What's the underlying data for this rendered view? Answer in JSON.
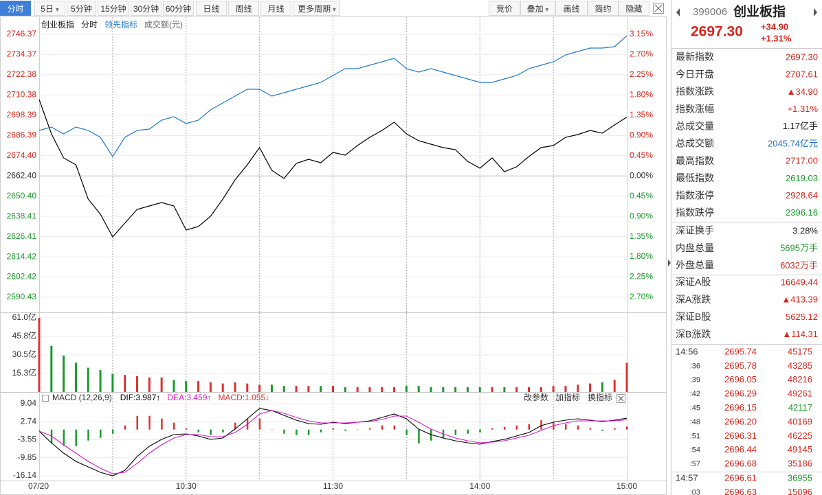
{
  "toolbar": {
    "left": [
      {
        "label": "分时"
      },
      {
        "label": "5日",
        "menu": true
      },
      {
        "label": "5分钟"
      },
      {
        "label": "15分钟"
      },
      {
        "label": "30分钟"
      },
      {
        "label": "60分钟"
      },
      {
        "label": "日线"
      },
      {
        "label": "周线"
      },
      {
        "label": "月线"
      },
      {
        "label": "更多周期",
        "menu": true
      }
    ],
    "right": [
      {
        "label": "竞价"
      },
      {
        "label": "叠加",
        "menu": true
      },
      {
        "label": "画线"
      },
      {
        "label": "简约"
      },
      {
        "label": "隐藏"
      }
    ]
  },
  "chart_data": [
    {
      "type": "line",
      "mode": "分时",
      "categories": [
        "07/20",
        null,
        null,
        null,
        null,
        null,
        null,
        null,
        null,
        null,
        null,
        null,
        "10:30",
        null,
        null,
        null,
        null,
        null,
        null,
        null,
        null,
        null,
        null,
        null,
        "11:30",
        null,
        null,
        null,
        null,
        null,
        null,
        null,
        null,
        null,
        null,
        null,
        "14:00",
        null,
        null,
        null,
        null,
        null,
        null,
        null,
        null,
        null,
        null,
        null,
        "15:00"
      ],
      "series": [
        {
          "name": "创业板指",
          "color": "#000000",
          "values": [
            2707.69,
            2687.33,
            2673.08,
            2669.01,
            2648.65,
            2639.69,
            2626.26,
            2634.4,
            2642.54,
            2644.58,
            2646.62,
            2644.58,
            2630.33,
            2632.37,
            2638.47,
            2648.65,
            2660.05,
            2669.01,
            2679.19,
            2665.75,
            2660.87,
            2669.82,
            2672.27,
            2670.23,
            2676.34,
            2674.71,
            2680.41,
            2685.3,
            2689.37,
            2694.25,
            2687.33,
            2683.26,
            2681.22,
            2679.19,
            2677.97,
            2671.05,
            2666.97,
            2673.08,
            2664.94,
            2667.79,
            2673.9,
            2679.19,
            2680.41,
            2685.3,
            2686.92,
            2689.37,
            2687.74,
            2692.62,
            2697.3
          ]
        },
        {
          "name": "领先指标",
          "color": "#1f7ad1",
          "values": [
            2689.37,
            2691.4,
            2687.33,
            2691.4,
            2689.37,
            2685.3,
            2673.9,
            2685.3,
            2689.37,
            2690.18,
            2695.47,
            2697.51,
            2693.44,
            2695.47,
            2701.58,
            2705.65,
            2709.73,
            2713.8,
            2713.8,
            2709.73,
            2711.76,
            2713.8,
            2715.83,
            2717.87,
            2721.94,
            2726.01,
            2726.01,
            2728.05,
            2730.08,
            2732.12,
            2726.01,
            2723.98,
            2726.01,
            2723.98,
            2721.94,
            2719.9,
            2717.87,
            2717.87,
            2719.9,
            2721.94,
            2726.01,
            2728.05,
            2730.08,
            2734.16,
            2736.19,
            2738.23,
            2738.23,
            2739.04,
            2745.56
          ]
        }
      ],
      "ylim": [
        2590.43,
        2746.37
      ],
      "yticks": [
        2746.37,
        2734.37,
        2722.38,
        2710.38,
        2698.39,
        2686.39,
        {
          "value": 2674.4,
          "label": "2674.40"
        },
        {
          "value": 2662.4,
          "label": "2662.40"
        },
        {
          "value": 2650.4,
          "label": "2650.40"
        },
        2638.41,
        2626.41,
        2614.42,
        2602.42,
        2590.43
      ],
      "y2lim": [
        -2.7,
        3.15
      ],
      "y2ticks": [
        {
          "value": 3.15,
          "label": "3.15%"
        },
        {
          "value": 2.7,
          "label": "2.70%"
        },
        {
          "value": 2.25,
          "label": "2.25%"
        },
        {
          "value": 1.8,
          "label": "1.80%"
        },
        {
          "value": 1.35,
          "label": "1.35%"
        },
        {
          "value": 0.9,
          "label": "0.90%"
        },
        {
          "value": 0.45,
          "label": "0.45%"
        },
        {
          "value": 0,
          "label": "0.00%"
        },
        {
          "value": -0.45,
          "label": "0.45%"
        },
        {
          "value": -0.9,
          "label": "0.90%"
        },
        {
          "value": -1.35,
          "label": "1.35%"
        },
        {
          "value": -1.8,
          "label": "1.80%"
        },
        {
          "value": -2.25,
          "label": "2.25%"
        },
        {
          "value": -2.7,
          "label": "2.70%"
        }
      ],
      "grid": true
    },
    {
      "type": "bar",
      "title": "成交额(元)",
      "up_color": "#e0302f",
      "down_color": "#1a9a2a",
      "values": [
        61,
        38,
        30,
        24,
        20,
        18,
        15,
        14,
        13,
        12,
        12,
        10,
        9,
        9,
        8,
        7,
        8,
        7,
        6,
        6,
        5,
        5,
        5,
        5,
        5,
        4,
        4,
        4,
        4,
        4,
        5,
        5,
        4,
        4,
        4,
        4,
        4,
        4,
        4,
        4,
        4,
        4,
        5,
        5,
        6,
        7,
        8,
        10,
        24
      ],
      "ylim": [
        0,
        61
      ],
      "yticks": [
        {
          "value": 61,
          "label": "61.0亿"
        },
        {
          "value": 45.8,
          "label": "45.8亿"
        },
        {
          "value": 30.5,
          "label": "30.5亿"
        },
        {
          "value": 15.3,
          "label": "15.3亿"
        }
      ],
      "grid": true
    },
    {
      "type": "macd",
      "title": "MACD (12,26,9)",
      "readouts": [
        {
          "text": "DIF:3.987↑",
          "color": "#000000"
        },
        {
          "text": "DEA:3.459↑",
          "color": "#d81cc8"
        },
        {
          "text": "MACD:1.055↓",
          "color": "#e0302f"
        }
      ],
      "tools": [
        "改参数",
        "加指标",
        "换指标"
      ],
      "series": [
        {
          "name": "DIF",
          "color": "#000000",
          "values": [
            -0.55,
            -4.63,
            -8.23,
            -11.1,
            -13.02,
            -14.94,
            -16.14,
            -14.22,
            -9.43,
            -5.83,
            -3.43,
            -1.75,
            -1.51,
            -2.23,
            -3.43,
            -2.95,
            0.17,
            3.76,
            7.36,
            6.64,
            4.96,
            3.28,
            2.09,
            1.85,
            2.57,
            2.09,
            2.57,
            3.04,
            4.24,
            5.44,
            3.76,
            0.17,
            -1.75,
            -2.95,
            -3.91,
            -4.63,
            -5.11,
            -4.15,
            -3.43,
            -2.23,
            -1.03,
            1.37,
            2.57,
            3.28,
            3.76,
            3.28,
            2.8,
            3.28,
            3.99
          ]
        },
        {
          "name": "DEA",
          "color": "#d81cc8",
          "values": [
            -0.55,
            -2.23,
            -5.35,
            -8.23,
            -11.1,
            -13.5,
            -15.42,
            -14.94,
            -11.82,
            -8.23,
            -5.35,
            -2.95,
            -1.75,
            -1.75,
            -2.47,
            -2.47,
            -1.03,
            1.85,
            5.44,
            6.64,
            5.68,
            4.24,
            3.04,
            2.33,
            2.33,
            2.33,
            2.57,
            2.8,
            3.52,
            4.72,
            4.72,
            2.57,
            0.17,
            -1.51,
            -2.95,
            -3.91,
            -4.63,
            -4.39,
            -3.91,
            -2.95,
            -1.99,
            -0.31,
            1.37,
            2.33,
            3.04,
            3.04,
            3.04,
            3.04,
            3.46
          ]
        },
        {
          "name": "MACD",
          "up_color": "#e0302f",
          "down_color": "#1a9a2a",
          "values": [
            0,
            -4.8,
            -5.76,
            -5.74,
            -3.84,
            -2.88,
            -1.44,
            1.44,
            4.78,
            4.8,
            3.84,
            2.4,
            0.48,
            -0.96,
            -1.92,
            -0.96,
            2.4,
            3.82,
            3.84,
            0,
            -1.44,
            -1.92,
            -1.9,
            -0.96,
            0.48,
            -0.48,
            0,
            0.48,
            1.44,
            1.44,
            -1.92,
            -4.8,
            -3.84,
            -2.88,
            -1.92,
            -1.44,
            -0.96,
            0.48,
            0.96,
            1.44,
            1.92,
            3.36,
            2.4,
            1.9,
            1.44,
            0.48,
            -0.48,
            0.48,
            1.055
          ]
        }
      ],
      "ylim": [
        -16.14,
        9.04
      ],
      "yticks": [
        9.04,
        2.74,
        -3.55,
        -9.85,
        -16.14
      ],
      "grid": true
    }
  ],
  "quote": {
    "code": "399006",
    "name": "创业板指",
    "price": "2697.30",
    "change": "+34.90",
    "change_pct": "+1.31%"
  },
  "stats": [
    [
      {
        "label": "最新指数",
        "value": "2697.30",
        "color": "#d9261c"
      },
      {
        "label": "今日开盘",
        "value": "2707.61",
        "color": "#d9261c"
      },
      {
        "label": "指数涨跌",
        "value": "▲34.90",
        "color": "#d9261c"
      },
      {
        "label": "指数涨幅",
        "value": "+1.31%",
        "color": "#d9261c"
      },
      {
        "label": "总成交量",
        "value": "1.17亿手",
        "color": "#222222"
      },
      {
        "label": "总成交额",
        "value": "2045.74亿元",
        "color": "#1f6fc0"
      },
      {
        "label": "最高指数",
        "value": "2717.00",
        "color": "#d9261c"
      },
      {
        "label": "最低指数",
        "value": "2619.03",
        "color": "#1a9a2a"
      },
      {
        "label": "指数涨停",
        "value": "2928.64",
        "color": "#d9261c"
      },
      {
        "label": "指数跌停",
        "value": "2396.16",
        "color": "#1a9a2a"
      }
    ],
    [
      {
        "label": "深证换手",
        "value": "3.28%",
        "color": "#222222"
      },
      {
        "label": "内盘总量",
        "value": "5695万手",
        "color": "#1a9a2a"
      },
      {
        "label": "外盘总量",
        "value": "6032万手",
        "color": "#d9261c"
      }
    ],
    [
      {
        "label": "深证A股",
        "value": "16649.44",
        "color": "#d9261c"
      },
      {
        "label": "深A涨跌",
        "value": "▲413.39",
        "color": "#d9261c"
      },
      {
        "label": "深证B股",
        "value": "5625.12",
        "color": "#d9261c"
      },
      {
        "label": "深B涨跌",
        "value": "▲114.31",
        "color": "#d9261c"
      }
    ]
  ],
  "trades": [
    [
      {
        "time": "14:56",
        "price": "2695.74",
        "volume": "45175",
        "color": "#d9261c"
      },
      {
        "time": ":36",
        "price": "2695.78",
        "volume": "43285",
        "color": "#d9261c"
      },
      {
        "time": ":39",
        "price": "2696.05",
        "volume": "48216",
        "color": "#d9261c"
      },
      {
        "time": ":42",
        "price": "2696.29",
        "volume": "49261",
        "color": "#d9261c"
      },
      {
        "time": ":45",
        "price": "2696.15",
        "volume": "42117",
        "color": "#1a9a2a"
      },
      {
        "time": ":48",
        "price": "2696.20",
        "volume": "40169",
        "color": "#d9261c"
      },
      {
        "time": ":51",
        "price": "2696.31",
        "volume": "46225",
        "color": "#d9261c"
      },
      {
        "time": ":54",
        "price": "2696.44",
        "volume": "49145",
        "color": "#d9261c"
      },
      {
        "time": ":57",
        "price": "2696.68",
        "volume": "35186",
        "color": "#d9261c"
      }
    ],
    [
      {
        "time": "14:57",
        "price": "2696.61",
        "volume": "36955",
        "color": "#1a9a2a"
      },
      {
        "time": ":03",
        "price": "2696.63",
        "volume": "15096",
        "color": "#d9261c"
      }
    ]
  ]
}
